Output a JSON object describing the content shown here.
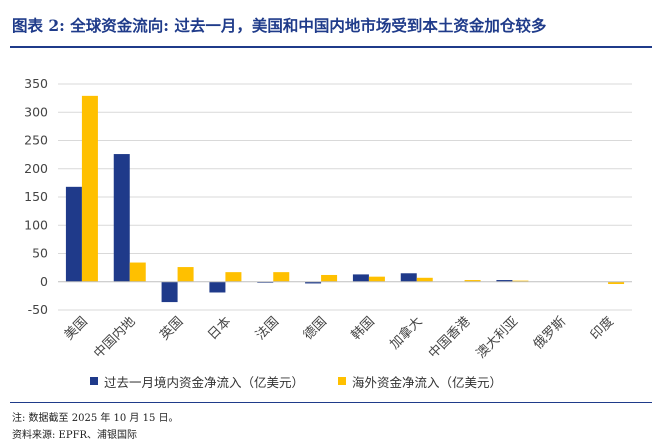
{
  "header": {
    "title": "图表 2: 全球资金流向: 过去一月，美国和中国内地市场受到本土资金加仓较多"
  },
  "footer": {
    "note": "注: 数据截至 2025 年 10 月 15 日。",
    "source": "资料来源: EPFR、浦银国际"
  },
  "colors": {
    "domestic": "#1f3a8a",
    "foreign": "#ffc000",
    "grid": "#d9d9d9",
    "title": "#1f3b8a"
  },
  "chart_data": {
    "type": "bar",
    "title": "",
    "xlabel": "",
    "ylabel": "",
    "ylim": [
      -50,
      350
    ],
    "yticks": [
      -50,
      0,
      50,
      100,
      150,
      200,
      250,
      300,
      350
    ],
    "grid": true,
    "legend_position": "bottom",
    "categories": [
      "美国",
      "中国内地",
      "英国",
      "日本",
      "法国",
      "德国",
      "韩国",
      "加拿大",
      "中国香港",
      "澳大利亚",
      "俄罗斯",
      "印度"
    ],
    "series": [
      {
        "name": "过去一月境内资金净流入（亿美元）",
        "color": "#1f3a8a",
        "values": [
          168,
          226,
          -36,
          -19,
          -1,
          -3,
          13,
          15,
          0,
          3,
          0,
          0
        ]
      },
      {
        "name": "海外资金净流入（亿美元）",
        "color": "#ffc000",
        "values": [
          329,
          34,
          26,
          17,
          17,
          12,
          9,
          7,
          3,
          2,
          0,
          -4
        ]
      }
    ]
  }
}
